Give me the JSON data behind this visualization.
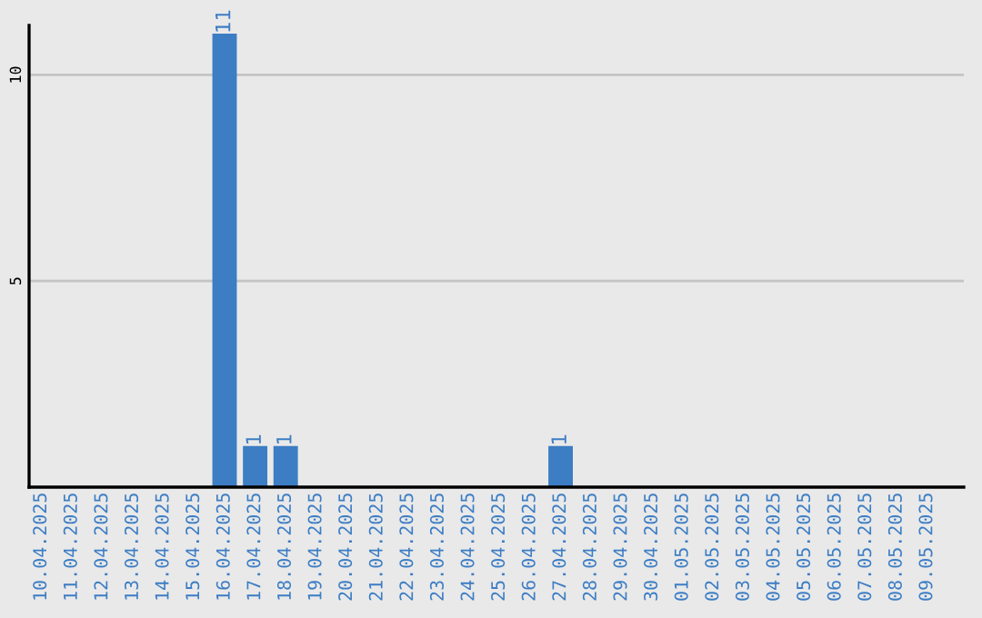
{
  "chart_data": {
    "type": "bar",
    "categories": [
      "10.04.2025",
      "11.04.2025",
      "12.04.2025",
      "13.04.2025",
      "14.04.2025",
      "15.04.2025",
      "16.04.2025",
      "17.04.2025",
      "18.04.2025",
      "19.04.2025",
      "20.04.2025",
      "21.04.2025",
      "22.04.2025",
      "23.04.2025",
      "24.04.2025",
      "25.04.2025",
      "26.04.2025",
      "27.04.2025",
      "28.04.2025",
      "29.04.2025",
      "30.04.2025",
      "01.05.2025",
      "02.05.2025",
      "03.05.2025",
      "04.05.2025",
      "05.05.2025",
      "06.05.2025",
      "07.05.2025",
      "08.05.2025",
      "09.05.2025"
    ],
    "values": [
      0,
      0,
      0,
      0,
      0,
      0,
      11,
      1,
      1,
      0,
      0,
      0,
      0,
      0,
      0,
      0,
      0,
      1,
      0,
      0,
      0,
      0,
      0,
      0,
      0,
      0,
      0,
      0,
      0,
      0
    ],
    "value_labels": [
      null,
      null,
      null,
      null,
      null,
      null,
      "11",
      "1",
      "1",
      null,
      null,
      null,
      null,
      null,
      null,
      null,
      null,
      "1",
      null,
      null,
      null,
      null,
      null,
      null,
      null,
      null,
      null,
      null,
      null,
      null
    ],
    "color": "#3c7dc4",
    "ylim": [
      0,
      11.2
    ],
    "yticks": [
      5,
      10
    ],
    "grid": "y",
    "legend": false
  }
}
